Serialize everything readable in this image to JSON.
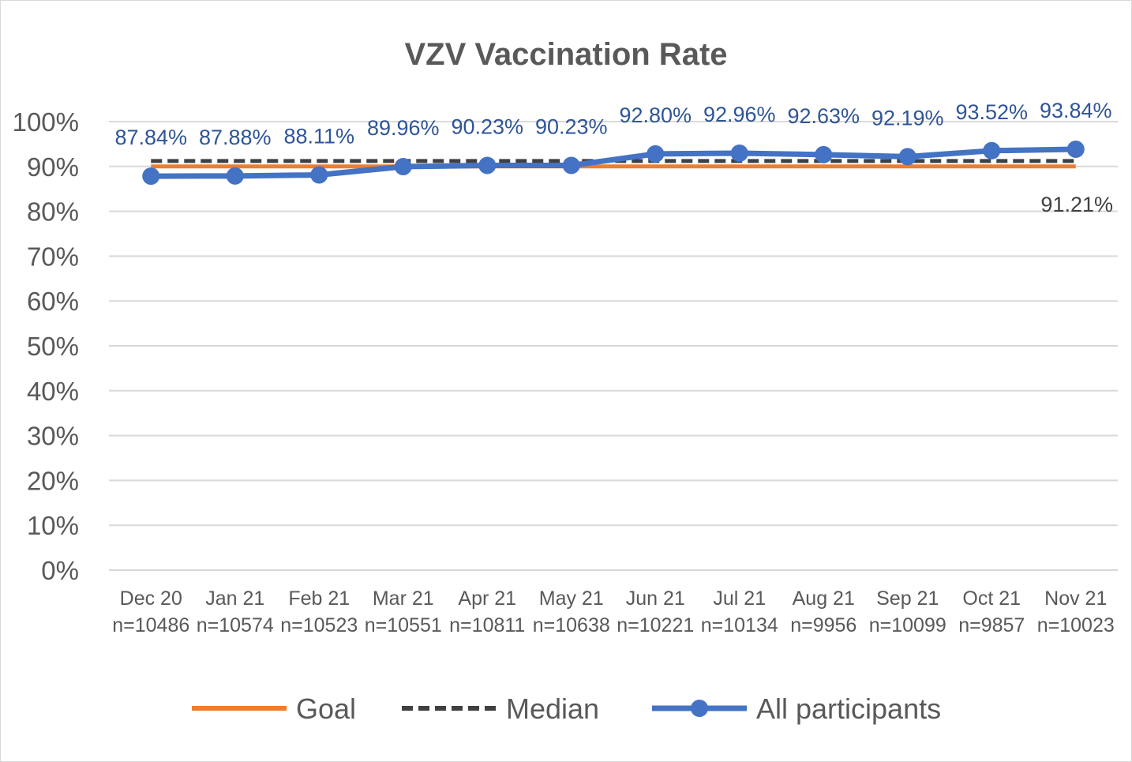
{
  "chart_data": {
    "type": "line",
    "title": "VZV Vaccination Rate",
    "xlabel": "",
    "ylabel": "",
    "ylim": [
      0,
      100
    ],
    "y_ticks": [
      "0%",
      "10%",
      "20%",
      "30%",
      "40%",
      "50%",
      "60%",
      "70%",
      "80%",
      "90%",
      "100%"
    ],
    "grid": true,
    "legend_position": "bottom",
    "categories": [
      "Dec 20",
      "Jan 21",
      "Feb 21",
      "Mar 21",
      "Apr 21",
      "May 21",
      "Jun 21",
      "Jul 21",
      "Aug 21",
      "Sep 21",
      "Oct 21",
      "Nov 21"
    ],
    "category_counts": [
      "n=10486",
      "n=10574",
      "n=10523",
      "n=10551",
      "n=10811",
      "n=10638",
      "n=10221",
      "n=10134",
      "n=9956",
      "n=10099",
      "n=9857",
      "n=10023"
    ],
    "series": [
      {
        "name": "Goal",
        "color": "#ED7D31",
        "style": "solid",
        "values": [
          90,
          90,
          90,
          90,
          90,
          90,
          90,
          90,
          90,
          90,
          90,
          90
        ]
      },
      {
        "name": "Median",
        "color": "#404040",
        "style": "dashed",
        "values": [
          91.21,
          91.21,
          91.21,
          91.21,
          91.21,
          91.21,
          91.21,
          91.21,
          91.21,
          91.21,
          91.21,
          91.21
        ],
        "end_label": "91.21%"
      },
      {
        "name": "All participants",
        "color": "#4472C4",
        "style": "solid-markers",
        "values": [
          87.84,
          87.88,
          88.11,
          89.96,
          90.23,
          90.23,
          92.8,
          92.96,
          92.63,
          92.19,
          93.52,
          93.84
        ],
        "labels": [
          "87.84%",
          "87.88%",
          "88.11%",
          "89.96%",
          "90.23%",
          "90.23%",
          "92.80%",
          "92.96%",
          "92.63%",
          "92.19%",
          "93.52%",
          "93.84%"
        ]
      }
    ],
    "label_color": "#2F5597"
  }
}
